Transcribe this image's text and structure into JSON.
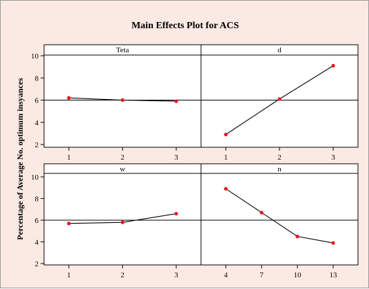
{
  "chart_data": {
    "type": "line",
    "title": "Main Effects Plot for ACS",
    "ylabel": "Percentage of Average No. optimum insyances",
    "ylim": [
      2,
      10
    ],
    "yticks": [
      2,
      4,
      6,
      8,
      10
    ],
    "reference_line": 6.0,
    "colors": {
      "background": "#fbe9e3",
      "panel": "#ffffff",
      "line": "#000000",
      "marker": "#e8141b",
      "reference": "#000000"
    },
    "panels": [
      {
        "strip": "Teta",
        "categories": [
          "1",
          "2",
          "3"
        ],
        "values": [
          6.2,
          6.0,
          5.9
        ]
      },
      {
        "strip": "d",
        "categories": [
          "1",
          "2",
          "3"
        ],
        "values": [
          2.9,
          6.1,
          9.1
        ]
      },
      {
        "strip": "w",
        "categories": [
          "1",
          "2",
          "3"
        ],
        "values": [
          5.7,
          5.8,
          6.6
        ]
      },
      {
        "strip": "n",
        "categories": [
          "4",
          "7",
          "10",
          "13"
        ],
        "values": [
          8.9,
          6.7,
          4.5,
          3.9
        ]
      }
    ]
  }
}
